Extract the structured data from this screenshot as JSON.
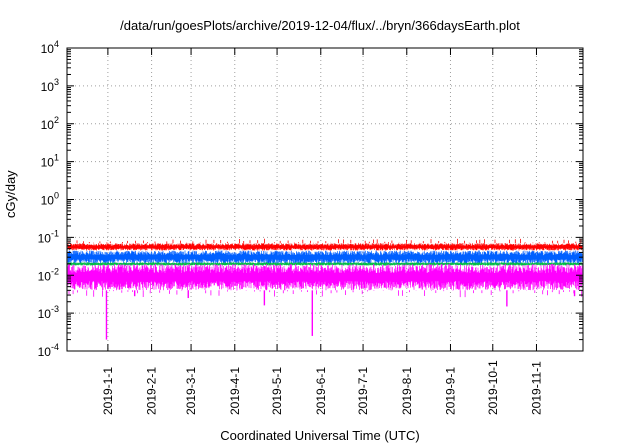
{
  "chart_data": {
    "type": "line",
    "title": "/data/run/goesPlots/archive/2019-12-04/flux/../bryn/366daysEarth.plot",
    "xlabel": "Coordinated Universal Time (UTC)",
    "ylabel": "cGy/day",
    "yscale": "log",
    "ylim": [
      0.0001,
      10000
    ],
    "xlim": [
      "2018-12-03",
      "2019-12-04"
    ],
    "grid": true,
    "x_ticks": [
      "2019-1-1",
      "2019-2-1",
      "2019-3-1",
      "2019-4-1",
      "2019-5-1",
      "2019-6-1",
      "2019-7-1",
      "2019-8-1",
      "2019-9-1",
      "2019-10-1",
      "2019-11-1"
    ],
    "y_ticks": [
      {
        "base": "10",
        "exp": "-4"
      },
      {
        "base": "10",
        "exp": "-3"
      },
      {
        "base": "10",
        "exp": "-2"
      },
      {
        "base": "10",
        "exp": "-1"
      },
      {
        "base": "10",
        "exp": "0"
      },
      {
        "base": "10",
        "exp": "1"
      },
      {
        "base": "10",
        "exp": "2"
      },
      {
        "base": "10",
        "exp": "3"
      },
      {
        "base": "10",
        "exp": "4"
      }
    ],
    "series": [
      {
        "color": "#ff0000",
        "typical_high": 0.07,
        "typical_low": 0.045
      },
      {
        "color": "#0060ff",
        "typical_high": 0.045,
        "typical_low": 0.02
      },
      {
        "color": "#00bb44",
        "typical_high": 0.022,
        "typical_low": 0.018
      },
      {
        "color": "#ff00ff",
        "typical_high": 0.02,
        "typical_low": 0.004,
        "dips": [
          {
            "date": "2018-12-31",
            "value": 0.0002
          },
          {
            "date": "2019-05-26",
            "value": 0.00025
          },
          {
            "date": "2019-04-22",
            "value": 0.0016
          },
          {
            "date": "2019-10-11",
            "value": 0.0015
          },
          {
            "date": "2019-02-27",
            "value": 0.0025
          },
          {
            "date": "2019-01-20",
            "value": 0.0028
          },
          {
            "date": "2019-11-28",
            "value": 0.0028
          }
        ]
      }
    ]
  }
}
